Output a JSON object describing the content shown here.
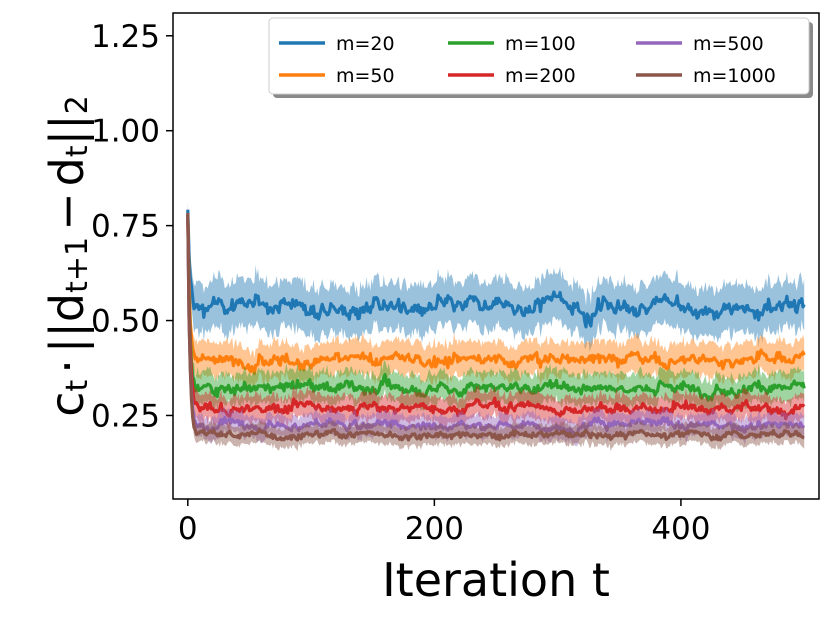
{
  "chart_data": {
    "type": "line",
    "title": "",
    "xlabel": "Iteration t",
    "ylabel": {
      "c": "c",
      "c_sub": "t",
      "dot": "·",
      "bars_open": "||",
      "d1": "d",
      "d1_sub": "t+1",
      "minus": "−",
      "d2": "d",
      "d2_sub": "t",
      "bars_close": "||",
      "norm_sub": "2"
    },
    "xlim": [
      -12,
      512
    ],
    "ylim": [
      0.03,
      1.31
    ],
    "xticks": [
      0,
      200,
      400
    ],
    "xtick_labels": [
      "0",
      "200",
      "400"
    ],
    "yticks": [
      0.25,
      0.5,
      0.75,
      1.0,
      1.25
    ],
    "ytick_labels": [
      "0.25",
      "0.50",
      "0.75",
      "1.00",
      "1.25"
    ],
    "legend": {
      "position": "top-right",
      "ncol": 3
    },
    "start_value": 0.78,
    "x_range": [
      0,
      500
    ],
    "series": [
      {
        "name": "m=20",
        "color": "#1f77b4",
        "plateau": 0.535,
        "band_halfwidth": 0.055,
        "noise": 0.012
      },
      {
        "name": "m=50",
        "color": "#ff7f0e",
        "plateau": 0.4,
        "band_halfwidth": 0.04,
        "noise": 0.009
      },
      {
        "name": "m=100",
        "color": "#2ca02c",
        "plateau": 0.325,
        "band_halfwidth": 0.035,
        "noise": 0.008
      },
      {
        "name": "m=200",
        "color": "#d62728",
        "plateau": 0.27,
        "band_halfwidth": 0.03,
        "noise": 0.007
      },
      {
        "name": "m=500",
        "color": "#9467bd",
        "plateau": 0.225,
        "band_halfwidth": 0.025,
        "noise": 0.006
      },
      {
        "name": "m=1000",
        "color": "#8c564b",
        "plateau": 0.2,
        "band_halfwidth": 0.022,
        "noise": 0.005
      }
    ]
  }
}
